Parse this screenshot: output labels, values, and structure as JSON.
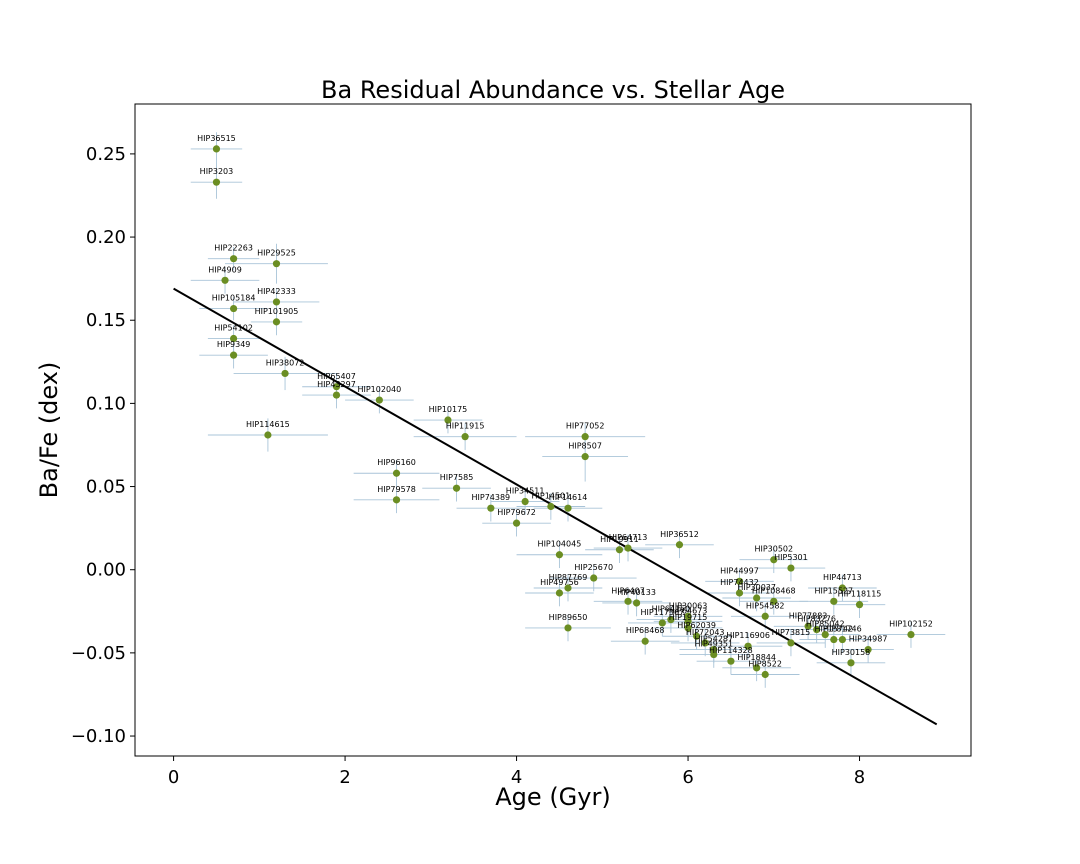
{
  "chart_data": {
    "type": "scatter",
    "title": "Ba Residual Abundance vs. Stellar Age",
    "xlabel": "Age (Gyr)",
    "ylabel": "Ba/Fe (dex)",
    "xlim": [
      -0.45,
      9.3
    ],
    "ylim": [
      -0.112,
      0.28
    ],
    "xticks": [
      0,
      2,
      4,
      6,
      8
    ],
    "yticks": [
      -0.1,
      -0.05,
      0.0,
      0.05,
      0.1,
      0.15,
      0.2,
      0.25
    ],
    "xtick_labels": [
      "0",
      "2",
      "4",
      "6",
      "8"
    ],
    "ytick_labels": [
      "−0.10",
      "−0.05",
      "0.00",
      "0.05",
      "0.10",
      "0.15",
      "0.20",
      "0.25"
    ],
    "grid": false,
    "legend": "none",
    "colors": {
      "point": "#6b8e23",
      "errorbar": "#a9c4d8",
      "fit": "#000000"
    },
    "fit_line": {
      "x": [
        0.0,
        8.9
      ],
      "y": [
        0.169,
        -0.093
      ]
    },
    "points": [
      {
        "label": "HIP36515",
        "x": 0.5,
        "y": 0.253,
        "xerr": 0.3,
        "yerr": 0.01
      },
      {
        "label": "HIP3203",
        "x": 0.5,
        "y": 0.233,
        "xerr": 0.3,
        "yerr": 0.01
      },
      {
        "label": "HIP22263",
        "x": 0.7,
        "y": 0.187,
        "xerr": 0.3,
        "yerr": 0.007
      },
      {
        "label": "HIP29525",
        "x": 1.2,
        "y": 0.184,
        "xerr": 0.6,
        "yerr": 0.012
      },
      {
        "label": "HIP4909",
        "x": 0.6,
        "y": 0.174,
        "xerr": 0.4,
        "yerr": 0.008
      },
      {
        "label": "HIP42333",
        "x": 1.2,
        "y": 0.161,
        "xerr": 0.5,
        "yerr": 0.008
      },
      {
        "label": "HIP105184",
        "x": 0.7,
        "y": 0.157,
        "xerr": 0.4,
        "yerr": 0.007
      },
      {
        "label": "HIP101905",
        "x": 1.2,
        "y": 0.149,
        "xerr": 0.3,
        "yerr": 0.008
      },
      {
        "label": "HIP54102",
        "x": 0.7,
        "y": 0.139,
        "xerr": 0.3,
        "yerr": 0.008
      },
      {
        "label": "HIP9349",
        "x": 0.7,
        "y": 0.129,
        "xerr": 0.4,
        "yerr": 0.008
      },
      {
        "label": "HIP38072",
        "x": 1.3,
        "y": 0.118,
        "xerr": 0.6,
        "yerr": 0.01
      },
      {
        "label": "HIP65407",
        "x": 1.9,
        "y": 0.11,
        "xerr": 0.4,
        "yerr": 0.008
      },
      {
        "label": "HIP43297",
        "x": 1.9,
        "y": 0.105,
        "xerr": 0.4,
        "yerr": 0.008
      },
      {
        "label": "HIP102040",
        "x": 2.4,
        "y": 0.102,
        "xerr": 0.4,
        "yerr": 0.008
      },
      {
        "label": "HIP114615",
        "x": 1.1,
        "y": 0.081,
        "xerr": 0.7,
        "yerr": 0.01
      },
      {
        "label": "HIP10175",
        "x": 3.2,
        "y": 0.09,
        "xerr": 0.4,
        "yerr": 0.008
      },
      {
        "label": "HIP11915",
        "x": 3.4,
        "y": 0.08,
        "xerr": 0.6,
        "yerr": 0.008
      },
      {
        "label": "HIP77052",
        "x": 4.8,
        "y": 0.08,
        "xerr": 0.7,
        "yerr": 0.008
      },
      {
        "label": "HIP8507",
        "x": 4.8,
        "y": 0.068,
        "xerr": 0.5,
        "yerr": 0.015
      },
      {
        "label": "HIP96160",
        "x": 2.6,
        "y": 0.058,
        "xerr": 0.5,
        "yerr": 0.008
      },
      {
        "label": "HIP7585",
        "x": 3.3,
        "y": 0.049,
        "xerr": 0.4,
        "yerr": 0.008
      },
      {
        "label": "HIP79578",
        "x": 2.6,
        "y": 0.042,
        "xerr": 0.5,
        "yerr": 0.008
      },
      {
        "label": "HIP34511",
        "x": 4.1,
        "y": 0.041,
        "xerr": 0.4,
        "yerr": 0.008
      },
      {
        "label": "HIP74389",
        "x": 3.7,
        "y": 0.037,
        "xerr": 0.4,
        "yerr": 0.008
      },
      {
        "label": "HIP14501",
        "x": 4.4,
        "y": 0.038,
        "xerr": 0.4,
        "yerr": 0.008
      },
      {
        "label": "HIP14614",
        "x": 4.6,
        "y": 0.037,
        "xerr": 0.4,
        "yerr": 0.008
      },
      {
        "label": "HIP79672",
        "x": 4.0,
        "y": 0.028,
        "xerr": 0.4,
        "yerr": 0.008
      },
      {
        "label": "HIP104045",
        "x": 4.5,
        "y": 0.009,
        "xerr": 0.5,
        "yerr": 0.008
      },
      {
        "label": "HIP64713",
        "x": 5.3,
        "y": 0.013,
        "xerr": 0.4,
        "yerr": 0.008
      },
      {
        "label": "HIP19911",
        "x": 5.2,
        "y": 0.012,
        "xerr": 0.4,
        "yerr": 0.008
      },
      {
        "label": "HIP36512",
        "x": 5.9,
        "y": 0.015,
        "xerr": 0.4,
        "yerr": 0.008
      },
      {
        "label": "HIP30502",
        "x": 7.0,
        "y": 0.006,
        "xerr": 0.4,
        "yerr": 0.008
      },
      {
        "label": "HIP5301",
        "x": 7.2,
        "y": 0.001,
        "xerr": 0.4,
        "yerr": 0.008
      },
      {
        "label": "HIP25670",
        "x": 4.9,
        "y": -0.005,
        "xerr": 0.5,
        "yerr": 0.008
      },
      {
        "label": "HIP87769",
        "x": 4.6,
        "y": -0.011,
        "xerr": 0.4,
        "yerr": 0.008
      },
      {
        "label": "HIP49756",
        "x": 4.5,
        "y": -0.014,
        "xerr": 0.4,
        "yerr": 0.008
      },
      {
        "label": "HIP6407",
        "x": 5.3,
        "y": -0.019,
        "xerr": 0.4,
        "yerr": 0.008
      },
      {
        "label": "HIP40133",
        "x": 5.4,
        "y": -0.02,
        "xerr": 0.4,
        "yerr": 0.008
      },
      {
        "label": "HIP44997",
        "x": 6.6,
        "y": -0.007,
        "xerr": 0.4,
        "yerr": 0.008
      },
      {
        "label": "HIP74432",
        "x": 6.6,
        "y": -0.014,
        "xerr": 0.4,
        "yerr": 0.008
      },
      {
        "label": "HIP30037",
        "x": 6.8,
        "y": -0.017,
        "xerr": 0.4,
        "yerr": 0.008
      },
      {
        "label": "HIP108468",
        "x": 7.0,
        "y": -0.019,
        "xerr": 0.4,
        "yerr": 0.008
      },
      {
        "label": "HIP44713",
        "x": 7.8,
        "y": -0.011,
        "xerr": 0.4,
        "yerr": 0.008
      },
      {
        "label": "HIP15527",
        "x": 7.7,
        "y": -0.019,
        "xerr": 0.4,
        "yerr": 0.008
      },
      {
        "label": "HIP118115",
        "x": 8.0,
        "y": -0.021,
        "xerr": 0.3,
        "yerr": 0.008
      },
      {
        "label": "HIP54582",
        "x": 6.9,
        "y": -0.028,
        "xerr": 0.4,
        "yerr": 0.008
      },
      {
        "label": "HIP117367",
        "x": 5.7,
        "y": -0.032,
        "xerr": 0.4,
        "yerr": 0.008
      },
      {
        "label": "HIP64150",
        "x": 5.8,
        "y": -0.03,
        "xerr": 0.4,
        "yerr": 0.008
      },
      {
        "label": "HIP30063",
        "x": 6.0,
        "y": -0.028,
        "xerr": 0.4,
        "yerr": 0.008
      },
      {
        "label": "HIP64673",
        "x": 6.0,
        "y": -0.031,
        "xerr": 0.4,
        "yerr": 0.008
      },
      {
        "label": "HIP89650",
        "x": 4.6,
        "y": -0.035,
        "xerr": 0.5,
        "yerr": 0.008
      },
      {
        "label": "HIP19715",
        "x": 6.0,
        "y": -0.035,
        "xerr": 0.4,
        "yerr": 0.008
      },
      {
        "label": "HIP77883",
        "x": 7.4,
        "y": -0.034,
        "xerr": 0.4,
        "yerr": 0.008
      },
      {
        "label": "HIP83276",
        "x": 7.5,
        "y": -0.036,
        "xerr": 0.4,
        "yerr": 0.008
      },
      {
        "label": "HIP85042",
        "x": 7.6,
        "y": -0.039,
        "xerr": 0.4,
        "yerr": 0.008
      },
      {
        "label": "HIP73815",
        "x": 7.2,
        "y": -0.044,
        "xerr": 0.4,
        "yerr": 0.008
      },
      {
        "label": "HIP68468",
        "x": 5.5,
        "y": -0.043,
        "xerr": 0.4,
        "yerr": 0.008
      },
      {
        "label": "HIP62039",
        "x": 6.1,
        "y": -0.04,
        "xerr": 0.4,
        "yerr": 0.008
      },
      {
        "label": "HIP72043",
        "x": 6.2,
        "y": -0.044,
        "xerr": 0.4,
        "yerr": 0.008
      },
      {
        "label": "HIP116906",
        "x": 6.7,
        "y": -0.046,
        "xerr": 0.4,
        "yerr": 0.008
      },
      {
        "label": "HIP54287",
        "x": 6.3,
        "y": -0.048,
        "xerr": 0.4,
        "yerr": 0.008
      },
      {
        "label": "HIP49351",
        "x": 6.3,
        "y": -0.051,
        "xerr": 0.4,
        "yerr": 0.008
      },
      {
        "label": "HIP114328",
        "x": 6.5,
        "y": -0.055,
        "xerr": 0.4,
        "yerr": 0.008
      },
      {
        "label": "HIP18844",
        "x": 6.8,
        "y": -0.059,
        "xerr": 0.4,
        "yerr": 0.008
      },
      {
        "label": "HIP8522",
        "x": 6.9,
        "y": -0.063,
        "xerr": 0.4,
        "yerr": 0.008
      },
      {
        "label": "HIP15742",
        "x": 7.7,
        "y": -0.042,
        "xerr": 0.4,
        "yerr": 0.008
      },
      {
        "label": "HIP81746",
        "x": 7.8,
        "y": -0.042,
        "xerr": 0.4,
        "yerr": 0.008
      },
      {
        "label": "HIP30158",
        "x": 7.9,
        "y": -0.056,
        "xerr": 0.4,
        "yerr": 0.008
      },
      {
        "label": "HIP102152",
        "x": 8.6,
        "y": -0.039,
        "xerr": 0.4,
        "yerr": 0.008
      },
      {
        "label": "HIP34987",
        "x": 8.1,
        "y": -0.048,
        "xerr": 0.3,
        "yerr": 0.008
      }
    ]
  }
}
